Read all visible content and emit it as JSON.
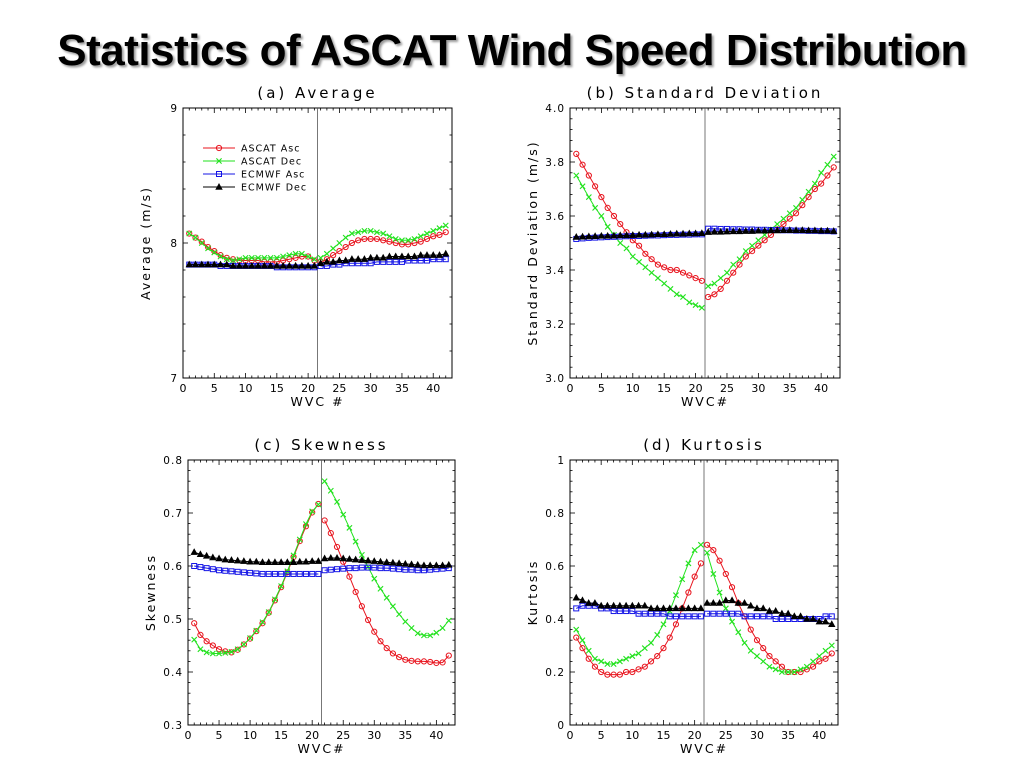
{
  "page": {
    "title": "Statistics of ASCAT Wind Speed Distribution"
  },
  "legend_items": [
    {
      "name": "ASCAT Asc",
      "color": "#e8141e",
      "marker": "circle"
    },
    {
      "name": "ASCAT Dec",
      "color": "#22e21e",
      "marker": "x"
    },
    {
      "name": "ECMWF Asc",
      "color": "#1414e6",
      "marker": "square"
    },
    {
      "name": "ECMWF Dec",
      "color": "#000000",
      "marker": "triangle"
    }
  ],
  "chart_data": [
    {
      "id": "a",
      "type": "line",
      "title": "(a) Average",
      "xlabel": "WVC #",
      "ylabel": "Average (m/s)",
      "xlim": [
        0,
        43
      ],
      "ylim": [
        7,
        9
      ],
      "xticks": [
        0,
        5,
        10,
        15,
        20,
        25,
        30,
        35,
        40
      ],
      "yticks": [
        7,
        8,
        9
      ],
      "divider_x": 21.5,
      "legend": "top-left",
      "seg1": [
        1,
        21
      ],
      "seg2": [
        22,
        42
      ],
      "series": [
        {
          "name": "ASCAT Asc",
          "color": "#e8141e",
          "marker": "circle",
          "values": [
            8.07,
            8.04,
            8.01,
            7.97,
            7.94,
            7.91,
            7.89,
            7.88,
            7.87,
            7.87,
            7.87,
            7.87,
            7.86,
            7.86,
            7.86,
            7.87,
            7.88,
            7.89,
            7.9,
            7.9,
            7.87,
            7.86,
            7.88,
            7.91,
            7.94,
            7.97,
            8.0,
            8.02,
            8.03,
            8.03,
            8.03,
            8.02,
            8.01,
            8.0,
            7.99,
            7.99,
            8.0,
            8.01,
            8.03,
            8.05,
            8.06,
            8.08
          ]
        },
        {
          "name": "ASCAT Dec",
          "color": "#22e21e",
          "marker": "x",
          "values": [
            8.07,
            8.04,
            8.0,
            7.96,
            7.93,
            7.9,
            7.88,
            7.87,
            7.88,
            7.89,
            7.89,
            7.89,
            7.89,
            7.89,
            7.89,
            7.9,
            7.91,
            7.92,
            7.92,
            7.9,
            7.88,
            7.89,
            7.92,
            7.96,
            8.0,
            8.04,
            8.07,
            8.08,
            8.09,
            8.09,
            8.08,
            8.07,
            8.05,
            8.03,
            8.02,
            8.02,
            8.03,
            8.05,
            8.07,
            8.09,
            8.11,
            8.13
          ]
        },
        {
          "name": "ECMWF Asc",
          "color": "#1414e6",
          "marker": "square",
          "values": [
            7.84,
            7.84,
            7.84,
            7.84,
            7.84,
            7.83,
            7.83,
            7.83,
            7.83,
            7.83,
            7.83,
            7.83,
            7.83,
            7.83,
            7.82,
            7.82,
            7.82,
            7.82,
            7.82,
            7.82,
            7.82,
            7.83,
            7.83,
            7.84,
            7.84,
            7.85,
            7.85,
            7.85,
            7.85,
            7.85,
            7.86,
            7.86,
            7.86,
            7.86,
            7.86,
            7.87,
            7.87,
            7.87,
            7.87,
            7.88,
            7.88,
            7.88
          ]
        },
        {
          "name": "ECMWF Dec",
          "color": "#000000",
          "marker": "triangle",
          "values": [
            7.84,
            7.84,
            7.84,
            7.84,
            7.84,
            7.84,
            7.84,
            7.83,
            7.83,
            7.83,
            7.83,
            7.83,
            7.83,
            7.83,
            7.83,
            7.83,
            7.83,
            7.83,
            7.83,
            7.83,
            7.83,
            7.85,
            7.86,
            7.86,
            7.87,
            7.87,
            7.88,
            7.88,
            7.88,
            7.89,
            7.89,
            7.89,
            7.9,
            7.9,
            7.9,
            7.9,
            7.9,
            7.91,
            7.91,
            7.91,
            7.91,
            7.92
          ]
        }
      ]
    },
    {
      "id": "b",
      "type": "line",
      "title": "(b) Standard Deviation",
      "xlabel": "WVC#",
      "ylabel": "Standard Deviation (m/s)",
      "xlim": [
        0,
        43
      ],
      "ylim": [
        3,
        4
      ],
      "xticks": [
        0,
        5,
        10,
        15,
        20,
        25,
        30,
        35,
        40
      ],
      "yticks": [
        3,
        3.2,
        3.4,
        3.6,
        3.8,
        4
      ],
      "divider_x": 21.5,
      "seg1": [
        1,
        21
      ],
      "seg2": [
        22,
        42
      ],
      "series": [
        {
          "name": "ASCAT Asc",
          "color": "#e8141e",
          "marker": "circle",
          "values": [
            3.83,
            3.79,
            3.75,
            3.71,
            3.67,
            3.63,
            3.6,
            3.57,
            3.54,
            3.51,
            3.49,
            3.46,
            3.44,
            3.42,
            3.41,
            3.4,
            3.4,
            3.39,
            3.38,
            3.37,
            3.36,
            3.3,
            3.31,
            3.33,
            3.36,
            3.39,
            3.42,
            3.45,
            3.47,
            3.49,
            3.51,
            3.53,
            3.55,
            3.57,
            3.59,
            3.61,
            3.64,
            3.67,
            3.7,
            3.72,
            3.75,
            3.78
          ]
        },
        {
          "name": "ASCAT Dec",
          "color": "#22e21e",
          "marker": "x",
          "values": [
            3.75,
            3.71,
            3.67,
            3.63,
            3.6,
            3.56,
            3.53,
            3.5,
            3.48,
            3.45,
            3.43,
            3.41,
            3.39,
            3.37,
            3.35,
            3.33,
            3.31,
            3.3,
            3.28,
            3.27,
            3.26,
            3.34,
            3.35,
            3.37,
            3.39,
            3.42,
            3.44,
            3.47,
            3.49,
            3.51,
            3.53,
            3.55,
            3.57,
            3.59,
            3.61,
            3.63,
            3.66,
            3.69,
            3.72,
            3.76,
            3.79,
            3.82
          ]
        },
        {
          "name": "ECMWF Asc",
          "color": "#1414e6",
          "marker": "square",
          "values": [
            3.515,
            3.517,
            3.519,
            3.52,
            3.521,
            3.522,
            3.523,
            3.524,
            3.525,
            3.526,
            3.526,
            3.527,
            3.528,
            3.528,
            3.529,
            3.53,
            3.53,
            3.531,
            3.531,
            3.532,
            3.532,
            3.553,
            3.553,
            3.552,
            3.552,
            3.551,
            3.551,
            3.55,
            3.55,
            3.549,
            3.549,
            3.548,
            3.548,
            3.547,
            3.547,
            3.546,
            3.546,
            3.545,
            3.545,
            3.544,
            3.544,
            3.543
          ]
        },
        {
          "name": "ECMWF Dec",
          "color": "#000000",
          "marker": "triangle",
          "values": [
            3.522,
            3.523,
            3.524,
            3.525,
            3.526,
            3.526,
            3.527,
            3.528,
            3.528,
            3.529,
            3.53,
            3.53,
            3.531,
            3.532,
            3.532,
            3.533,
            3.534,
            3.534,
            3.535,
            3.535,
            3.536,
            3.54,
            3.541,
            3.541,
            3.542,
            3.543,
            3.543,
            3.544,
            3.544,
            3.545,
            3.545,
            3.546,
            3.546,
            3.547,
            3.547,
            3.547,
            3.547,
            3.546,
            3.546,
            3.545,
            3.545,
            3.544
          ]
        }
      ]
    },
    {
      "id": "c",
      "type": "line",
      "title": "(c) Skewness",
      "xlabel": "WVC#",
      "ylabel": "Skewness",
      "xlim": [
        0,
        43
      ],
      "ylim": [
        0.3,
        0.8
      ],
      "xticks": [
        0,
        5,
        10,
        15,
        20,
        25,
        30,
        35,
        40
      ],
      "yticks": [
        0.3,
        0.4,
        0.5,
        0.6,
        0.7,
        0.8
      ],
      "divider_x": 21.5,
      "seg1": [
        1,
        21
      ],
      "seg2": [
        22,
        42
      ],
      "series": [
        {
          "name": "ASCAT Asc",
          "color": "#e8141e",
          "marker": "circle",
          "values": [
            0.492,
            0.47,
            0.458,
            0.45,
            0.443,
            0.439,
            0.437,
            0.442,
            0.452,
            0.463,
            0.477,
            0.492,
            0.512,
            0.535,
            0.56,
            0.588,
            0.617,
            0.647,
            0.675,
            0.701,
            0.717,
            0.686,
            0.662,
            0.636,
            0.608,
            0.58,
            0.551,
            0.524,
            0.498,
            0.476,
            0.458,
            0.445,
            0.435,
            0.428,
            0.423,
            0.421,
            0.42,
            0.42,
            0.419,
            0.417,
            0.418,
            0.431
          ]
        },
        {
          "name": "ASCAT Dec",
          "color": "#22e21e",
          "marker": "x",
          "values": [
            0.461,
            0.443,
            0.437,
            0.435,
            0.435,
            0.436,
            0.438,
            0.443,
            0.452,
            0.464,
            0.478,
            0.494,
            0.513,
            0.537,
            0.562,
            0.59,
            0.62,
            0.65,
            0.679,
            0.703,
            0.716,
            0.76,
            0.742,
            0.721,
            0.697,
            0.672,
            0.646,
            0.621,
            0.598,
            0.576,
            0.557,
            0.54,
            0.524,
            0.509,
            0.495,
            0.483,
            0.473,
            0.469,
            0.469,
            0.474,
            0.483,
            0.497
          ]
        },
        {
          "name": "ECMWF Asc",
          "color": "#1414e6",
          "marker": "square",
          "values": [
            0.6,
            0.598,
            0.596,
            0.594,
            0.592,
            0.591,
            0.59,
            0.589,
            0.588,
            0.587,
            0.586,
            0.585,
            0.585,
            0.585,
            0.585,
            0.585,
            0.585,
            0.585,
            0.585,
            0.585,
            0.585,
            0.592,
            0.593,
            0.594,
            0.595,
            0.596,
            0.596,
            0.597,
            0.597,
            0.597,
            0.596,
            0.596,
            0.595,
            0.594,
            0.593,
            0.593,
            0.592,
            0.592,
            0.593,
            0.594,
            0.595,
            0.596
          ]
        },
        {
          "name": "ECMWF Dec",
          "color": "#000000",
          "marker": "triangle",
          "values": [
            0.626,
            0.622,
            0.619,
            0.616,
            0.614,
            0.612,
            0.611,
            0.61,
            0.609,
            0.608,
            0.608,
            0.607,
            0.607,
            0.607,
            0.607,
            0.607,
            0.607,
            0.608,
            0.608,
            0.609,
            0.609,
            0.614,
            0.615,
            0.615,
            0.614,
            0.613,
            0.612,
            0.611,
            0.61,
            0.609,
            0.608,
            0.607,
            0.606,
            0.605,
            0.604,
            0.603,
            0.602,
            0.601,
            0.601,
            0.601,
            0.601,
            0.602
          ]
        }
      ]
    },
    {
      "id": "d",
      "type": "line",
      "title": "(d) Kurtosis",
      "xlabel": "WVC#",
      "ylabel": "Kurtosis",
      "xlim": [
        0,
        43
      ],
      "ylim": [
        0,
        1
      ],
      "xticks": [
        0,
        5,
        10,
        15,
        20,
        25,
        30,
        35,
        40
      ],
      "yticks": [
        0,
        0.2,
        0.4,
        0.6,
        0.8,
        1
      ],
      "divider_x": 21.5,
      "seg1": [
        1,
        21
      ],
      "seg2": [
        22,
        42
      ],
      "series": [
        {
          "name": "ASCAT Asc",
          "color": "#e8141e",
          "marker": "circle",
          "values": [
            0.33,
            0.29,
            0.25,
            0.22,
            0.2,
            0.19,
            0.19,
            0.19,
            0.2,
            0.2,
            0.21,
            0.22,
            0.24,
            0.26,
            0.29,
            0.33,
            0.38,
            0.44,
            0.5,
            0.56,
            0.61,
            0.68,
            0.66,
            0.62,
            0.57,
            0.52,
            0.46,
            0.41,
            0.36,
            0.32,
            0.29,
            0.26,
            0.24,
            0.22,
            0.2,
            0.2,
            0.2,
            0.21,
            0.22,
            0.24,
            0.25,
            0.27
          ]
        },
        {
          "name": "ASCAT Dec",
          "color": "#22e21e",
          "marker": "x",
          "values": [
            0.36,
            0.32,
            0.28,
            0.25,
            0.24,
            0.23,
            0.23,
            0.24,
            0.25,
            0.26,
            0.27,
            0.29,
            0.31,
            0.34,
            0.38,
            0.43,
            0.49,
            0.55,
            0.61,
            0.66,
            0.68,
            0.65,
            0.57,
            0.5,
            0.44,
            0.39,
            0.35,
            0.31,
            0.28,
            0.26,
            0.24,
            0.22,
            0.21,
            0.2,
            0.2,
            0.2,
            0.21,
            0.22,
            0.24,
            0.26,
            0.28,
            0.3
          ]
        },
        {
          "name": "ECMWF Asc",
          "color": "#1414e6",
          "marker": "square",
          "values": [
            0.44,
            0.45,
            0.45,
            0.45,
            0.44,
            0.44,
            0.43,
            0.43,
            0.43,
            0.43,
            0.42,
            0.42,
            0.42,
            0.42,
            0.42,
            0.41,
            0.41,
            0.41,
            0.41,
            0.41,
            0.41,
            0.42,
            0.42,
            0.42,
            0.42,
            0.42,
            0.42,
            0.41,
            0.41,
            0.41,
            0.41,
            0.41,
            0.4,
            0.4,
            0.4,
            0.4,
            0.4,
            0.4,
            0.4,
            0.4,
            0.41,
            0.41
          ]
        },
        {
          "name": "ECMWF Dec",
          "color": "#000000",
          "marker": "triangle",
          "values": [
            0.48,
            0.47,
            0.46,
            0.46,
            0.45,
            0.45,
            0.45,
            0.45,
            0.45,
            0.45,
            0.45,
            0.45,
            0.44,
            0.44,
            0.44,
            0.44,
            0.44,
            0.44,
            0.44,
            0.44,
            0.44,
            0.46,
            0.46,
            0.46,
            0.47,
            0.47,
            0.46,
            0.46,
            0.45,
            0.44,
            0.44,
            0.43,
            0.43,
            0.42,
            0.42,
            0.41,
            0.41,
            0.4,
            0.4,
            0.39,
            0.39,
            0.38
          ]
        }
      ]
    }
  ]
}
